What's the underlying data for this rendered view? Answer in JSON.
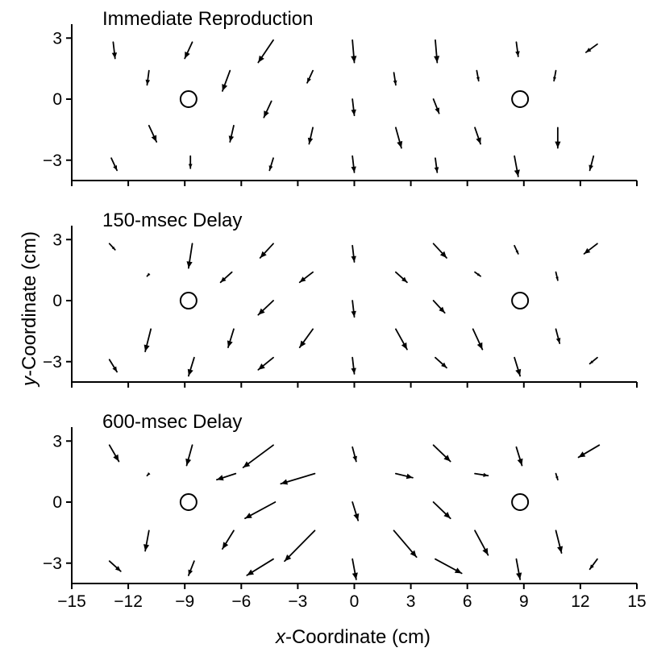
{
  "chart_data": {
    "type": "vector-field",
    "shared_xlabel": {
      "italic": "x",
      "rest": "-Coordinate (cm)"
    },
    "shared_ylabel": {
      "italic": "y",
      "rest": "-Coordinate (cm)"
    },
    "xlim": [
      -15,
      15
    ],
    "ylim": [
      -4,
      4
    ],
    "x_ticks": [
      -15,
      -12,
      -9,
      -6,
      -3,
      0,
      3,
      6,
      9,
      12,
      15
    ],
    "x_tick_labels": [
      "−15",
      "−12",
      "−9",
      "−6",
      "−3",
      "0",
      "3",
      "6",
      "9",
      "12",
      "15"
    ],
    "y_ticks": [
      3,
      0,
      -3
    ],
    "y_tick_labels": [
      "3",
      "0",
      "−3"
    ],
    "targets": [
      [
        -8.8,
        0
      ],
      [
        8.8,
        0
      ]
    ],
    "panels": [
      {
        "title": "Immediate Reproduction",
        "arrows": [
          [
            -12.8,
            2.8,
            -12.7,
            2.0
          ],
          [
            -8.6,
            2.8,
            -9.0,
            2.0
          ],
          [
            -4.3,
            2.9,
            -5.1,
            1.8
          ],
          [
            -0.1,
            2.9,
            0.0,
            1.8
          ],
          [
            4.3,
            2.9,
            4.4,
            1.8
          ],
          [
            8.6,
            2.8,
            8.7,
            2.1
          ],
          [
            12.9,
            2.7,
            12.3,
            2.3
          ],
          [
            -10.9,
            1.4,
            -11.0,
            0.7
          ],
          [
            -6.6,
            1.4,
            -7.0,
            0.4
          ],
          [
            -2.2,
            1.4,
            -2.5,
            0.8
          ],
          [
            2.1,
            1.3,
            2.2,
            0.7
          ],
          [
            6.5,
            1.4,
            6.6,
            0.9
          ],
          [
            10.7,
            1.4,
            10.6,
            0.9
          ],
          [
            -4.4,
            -0.1,
            -4.8,
            -0.9
          ],
          [
            -0.1,
            0.0,
            0.0,
            -0.8
          ],
          [
            4.2,
            0.0,
            4.5,
            -0.7
          ],
          [
            -10.9,
            -1.3,
            -10.5,
            -2.1
          ],
          [
            -6.4,
            -1.3,
            -6.6,
            -2.1
          ],
          [
            -2.2,
            -1.4,
            -2.4,
            -2.2
          ],
          [
            2.2,
            -1.4,
            2.5,
            -2.4
          ],
          [
            6.4,
            -1.4,
            6.7,
            -2.2
          ],
          [
            10.8,
            -1.4,
            10.8,
            -2.4
          ],
          [
            -12.9,
            -2.9,
            -12.6,
            -3.5
          ],
          [
            -8.7,
            -2.8,
            -8.7,
            -3.4
          ],
          [
            -4.3,
            -2.9,
            -4.5,
            -3.5
          ],
          [
            -0.1,
            -2.8,
            0.0,
            -3.6
          ],
          [
            4.3,
            -2.9,
            4.4,
            -3.6
          ],
          [
            8.5,
            -2.8,
            8.7,
            -3.8
          ],
          [
            12.7,
            -2.8,
            12.5,
            -3.5
          ]
        ]
      },
      {
        "title": "150-msec Delay",
        "arrows": [
          [
            -13.0,
            2.8,
            -12.7,
            2.5
          ],
          [
            -8.6,
            2.8,
            -8.8,
            1.6
          ],
          [
            -4.3,
            2.8,
            -5.0,
            2.1
          ],
          [
            -0.1,
            2.7,
            0.0,
            1.9
          ],
          [
            4.2,
            2.8,
            4.9,
            2.1
          ],
          [
            8.5,
            2.7,
            8.7,
            2.3
          ],
          [
            12.9,
            2.8,
            12.2,
            2.3
          ],
          [
            -10.9,
            1.3,
            -11.0,
            1.2
          ],
          [
            -6.5,
            1.4,
            -7.1,
            0.9
          ],
          [
            -2.2,
            1.4,
            -2.9,
            0.9
          ],
          [
            2.2,
            1.4,
            2.8,
            0.9
          ],
          [
            6.4,
            1.4,
            6.7,
            1.2
          ],
          [
            10.7,
            1.4,
            10.8,
            1.0
          ],
          [
            -4.3,
            0.0,
            -5.1,
            -0.7
          ],
          [
            -0.1,
            0.0,
            0.0,
            -0.8
          ],
          [
            4.2,
            0.0,
            4.8,
            -0.6
          ],
          [
            -10.8,
            -1.4,
            -11.1,
            -2.5
          ],
          [
            -6.4,
            -1.4,
            -6.7,
            -2.3
          ],
          [
            -2.2,
            -1.4,
            -2.9,
            -2.3
          ],
          [
            2.2,
            -1.4,
            2.8,
            -2.4
          ],
          [
            6.3,
            -1.4,
            6.8,
            -2.4
          ],
          [
            10.7,
            -1.4,
            10.9,
            -2.1
          ],
          [
            -13.0,
            -2.9,
            -12.6,
            -3.5
          ],
          [
            -8.5,
            -2.8,
            -8.8,
            -3.7
          ],
          [
            -4.3,
            -2.8,
            -5.1,
            -3.4
          ],
          [
            -0.1,
            -2.8,
            0.0,
            -3.6
          ],
          [
            4.3,
            -2.8,
            4.9,
            -3.3
          ],
          [
            8.5,
            -2.8,
            8.8,
            -3.7
          ],
          [
            12.9,
            -2.8,
            12.5,
            -3.1
          ]
        ]
      },
      {
        "title": "600-msec Delay",
        "arrows": [
          [
            -13.0,
            2.8,
            -12.5,
            2.0
          ],
          [
            -8.6,
            2.8,
            -8.9,
            1.8
          ],
          [
            -4.3,
            2.8,
            -5.9,
            1.7
          ],
          [
            -0.1,
            2.7,
            0.1,
            2.0
          ],
          [
            4.2,
            2.8,
            5.1,
            2.0
          ],
          [
            8.6,
            2.7,
            8.9,
            1.8
          ],
          [
            13.0,
            2.8,
            11.9,
            2.2
          ],
          [
            -10.9,
            1.4,
            -11.0,
            1.3
          ],
          [
            -6.3,
            1.4,
            -7.3,
            1.1
          ],
          [
            -2.1,
            1.4,
            -3.9,
            0.9
          ],
          [
            2.2,
            1.4,
            3.1,
            1.2
          ],
          [
            6.4,
            1.4,
            7.1,
            1.3
          ],
          [
            10.7,
            1.4,
            10.8,
            1.1
          ],
          [
            -4.2,
            0.0,
            -5.8,
            -0.8
          ],
          [
            -0.1,
            0.0,
            0.2,
            -0.9
          ],
          [
            4.2,
            0.0,
            5.1,
            -0.8
          ],
          [
            -10.9,
            -1.4,
            -11.1,
            -2.4
          ],
          [
            -6.4,
            -1.4,
            -7.0,
            -2.3
          ],
          [
            -2.1,
            -1.4,
            -3.7,
            -2.9
          ],
          [
            2.1,
            -1.4,
            3.3,
            -2.7
          ],
          [
            6.4,
            -1.4,
            7.1,
            -2.6
          ],
          [
            10.7,
            -1.4,
            11.0,
            -2.5
          ],
          [
            -13.0,
            -2.9,
            -12.4,
            -3.4
          ],
          [
            -8.5,
            -2.9,
            -8.8,
            -3.6
          ],
          [
            -4.3,
            -2.8,
            -5.7,
            -3.6
          ],
          [
            -0.1,
            -2.8,
            0.1,
            -3.8
          ],
          [
            4.3,
            -2.8,
            5.7,
            -3.5
          ],
          [
            8.6,
            -2.8,
            8.8,
            -3.8
          ],
          [
            12.9,
            -2.8,
            12.5,
            -3.3
          ]
        ]
      }
    ]
  }
}
